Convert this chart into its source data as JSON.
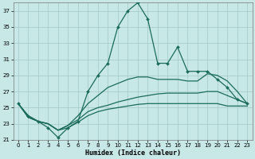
{
  "title": "",
  "xlabel": "Humidex (Indice chaleur)",
  "bg_color": "#c8e8e8",
  "grid_color": "#a8cccc",
  "line_color": "#1a6b5a",
  "xlim": [
    -0.5,
    23.5
  ],
  "ylim": [
    21,
    38
  ],
  "yticks": [
    21,
    23,
    25,
    27,
    29,
    31,
    33,
    35,
    37
  ],
  "xticks": [
    0,
    1,
    2,
    3,
    4,
    5,
    6,
    7,
    8,
    9,
    10,
    11,
    12,
    13,
    14,
    15,
    16,
    17,
    18,
    19,
    20,
    21,
    22,
    23
  ],
  "series0": [
    25.5,
    24.0,
    23.3,
    22.5,
    21.3,
    22.5,
    23.3,
    27.0,
    29.0,
    30.5,
    35.0,
    37.0,
    38.0,
    36.0,
    30.5,
    30.5,
    32.5,
    29.5,
    29.5,
    29.5,
    28.5,
    27.5,
    26.0,
    25.5
  ],
  "series1": [
    25.5,
    24.0,
    23.3,
    23.0,
    22.2,
    22.8,
    24.0,
    25.5,
    26.5,
    27.5,
    28.0,
    28.5,
    28.8,
    28.8,
    28.5,
    28.5,
    28.5,
    28.3,
    28.3,
    29.2,
    29.0,
    28.3,
    27.0,
    25.5
  ],
  "series2": [
    25.5,
    23.8,
    23.3,
    23.0,
    22.2,
    22.8,
    23.5,
    24.5,
    25.0,
    25.3,
    25.7,
    26.0,
    26.3,
    26.5,
    26.7,
    26.8,
    26.8,
    26.8,
    26.8,
    27.0,
    27.0,
    26.5,
    26.0,
    25.5
  ],
  "series3": [
    25.5,
    23.8,
    23.3,
    23.0,
    22.2,
    22.5,
    23.2,
    24.0,
    24.5,
    24.8,
    25.0,
    25.2,
    25.4,
    25.5,
    25.5,
    25.5,
    25.5,
    25.5,
    25.5,
    25.5,
    25.5,
    25.2,
    25.2,
    25.2
  ]
}
